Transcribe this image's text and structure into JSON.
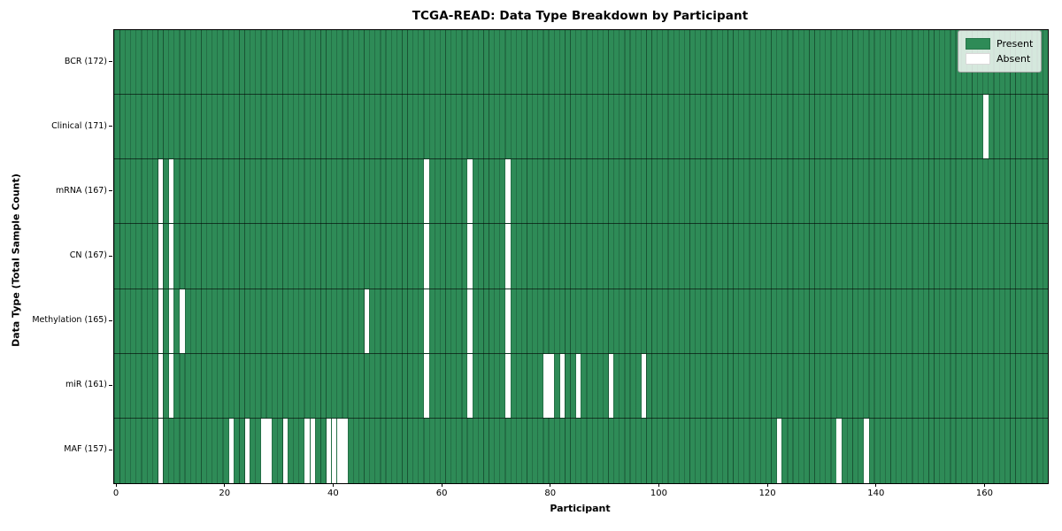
{
  "chart_data": {
    "type": "heatmap",
    "title": "TCGA-READ: Data Type Breakdown by Participant",
    "xlabel": "Participant",
    "ylabel": "Data Type (Total Sample Count)",
    "n_participants": 172,
    "x_ticks": [
      0,
      20,
      40,
      60,
      80,
      100,
      120,
      140,
      160
    ],
    "legend": [
      {
        "label": "Present",
        "color": "#2e8b57"
      },
      {
        "label": "Absent",
        "color": "#ffffff"
      }
    ],
    "colors": {
      "present": "#2e8b57",
      "absent": "#ffffff",
      "cell_border": "rgba(8,38,24,0.55)",
      "row_separator": "rgba(0,0,0,0.6)"
    },
    "rows": [
      {
        "label": "BCR (172)",
        "name": "BCR",
        "count": 172,
        "absent": []
      },
      {
        "label": "Clinical (171)",
        "name": "Clinical",
        "count": 171,
        "absent": [
          160
        ]
      },
      {
        "label": "mRNA (167)",
        "name": "mRNA",
        "count": 167,
        "absent": [
          8,
          10,
          57,
          65,
          72
        ]
      },
      {
        "label": "CN (167)",
        "name": "CN",
        "count": 167,
        "absent": [
          8,
          10,
          57,
          65,
          72
        ]
      },
      {
        "label": "Methylation (165)",
        "name": "Methylation",
        "count": 165,
        "absent": [
          8,
          10,
          12,
          46,
          57,
          65,
          72
        ]
      },
      {
        "label": "miR (161)",
        "name": "miR",
        "count": 161,
        "absent": [
          8,
          10,
          57,
          65,
          72,
          79,
          80,
          82,
          85,
          91,
          97
        ]
      },
      {
        "label": "MAF (157)",
        "name": "MAF",
        "count": 157,
        "absent": [
          8,
          21,
          24,
          27,
          28,
          31,
          35,
          36,
          39,
          40,
          41,
          42,
          122,
          133,
          138
        ]
      }
    ]
  }
}
